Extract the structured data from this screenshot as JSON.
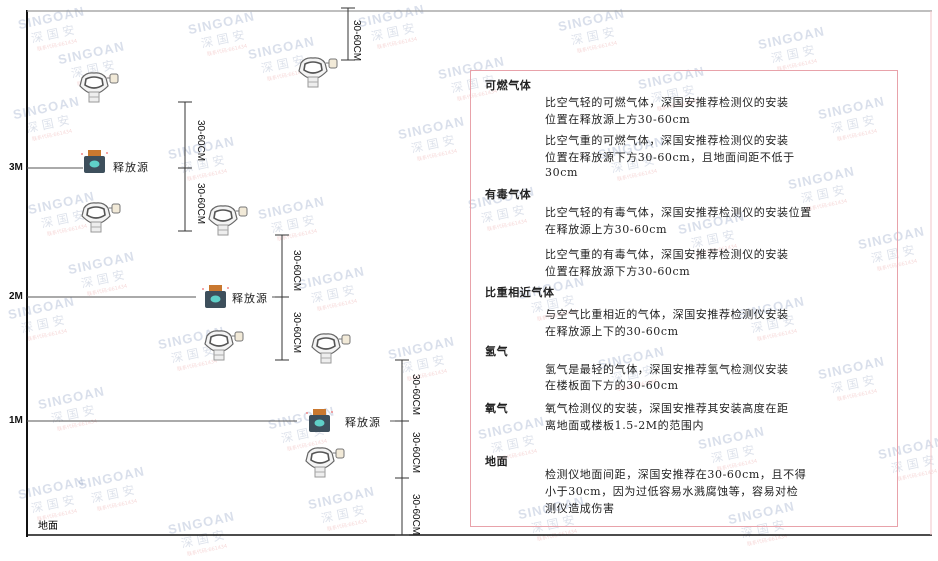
{
  "watermark": {
    "brand": "SINGOAN",
    "cn": "深国安",
    "small": "联系代码:661434"
  },
  "heights": [
    "3M",
    "2M",
    "1M"
  ],
  "source_label": "释放源",
  "dimension_label": "30-60CM",
  "floor_label": "地面",
  "colors": {
    "frame": "#111111",
    "box_border": "#e8a2aa",
    "source_body": "#3d4f5c",
    "source_cap": "#c9782f",
    "source_face": "#5fd0c8"
  },
  "panel": {
    "combustible": {
      "title": "可燃气体",
      "lighter": [
        "比空气轻的可燃气体，深国安推荐检测仪的安装",
        "位置在释放源上方30-60cm"
      ],
      "heavier": [
        "比空气重的可燃气体，深国安推荐检测仪的安装",
        "位置在释放源下方30-60cm，且地面间距不低于",
        "30cm"
      ]
    },
    "toxic": {
      "title": "有毒气体",
      "lighter": [
        "比空气轻的有毒气体，深国安推荐检测仪的安装位置",
        "在释放源上方30-60cm"
      ],
      "heavier": [
        "比空气重的有毒气体，深国安推荐检测仪的安装",
        "位置在释放源下方30-60cm"
      ]
    },
    "similar": {
      "title": "比重相近气体",
      "text": [
        "与空气比重相近的气体，深国安推荐检测仪安装",
        "在释放源上下的30-60cm"
      ]
    },
    "hydrogen": {
      "title": "氢气",
      "text": [
        "氢气是最轻的气体，深国安推荐氢气检测仪安装",
        "在楼板面下方的30-60cm"
      ]
    },
    "oxygen": {
      "title": "氧气",
      "text": [
        "氧气检测仪的安装，深国安推荐其安装高度在距",
        "离地面或楼板1.5-2M的范围内"
      ]
    },
    "ground": {
      "title": "地面",
      "text": [
        "检测仪地面间距，深国安推荐在30-60cm，且不得",
        "小于30cm，因为过低容易水溅腐蚀等，容易对检",
        "测仪造成伤害"
      ]
    }
  }
}
